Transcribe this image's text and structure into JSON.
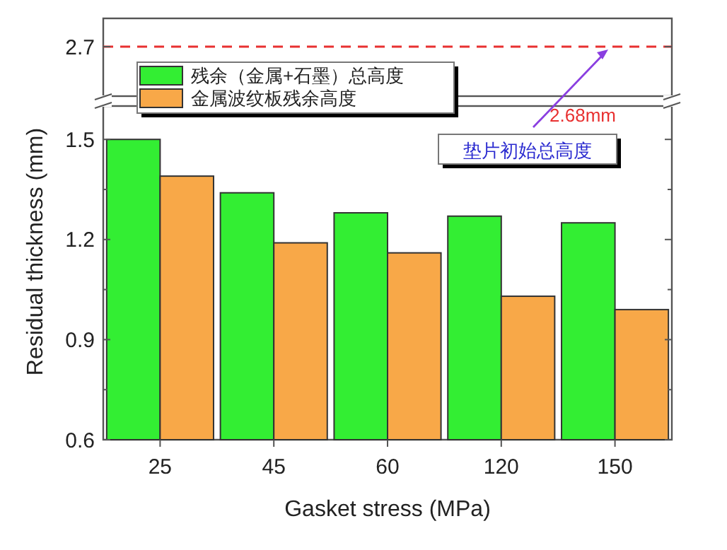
{
  "chart_data": {
    "type": "bar",
    "categories": [
      "25",
      "45",
      "60",
      "120",
      "150"
    ],
    "xlabel": "Gasket stress (MPa)",
    "ylabel": "Residual thickness (mm)",
    "ylim": [
      0.6,
      1.6
    ],
    "yticks": [
      0.6,
      {
        "value": 0.75,
        "label": null
      },
      0.9,
      {
        "value": 1.05,
        "label": null
      },
      1.2,
      {
        "value": 1.35,
        "label": null
      },
      1.5
    ],
    "legend": "top left",
    "series": [
      {
        "name": "残余（金属+石墨）总高度",
        "color": "#33ee33",
        "values": [
          1.5,
          1.34,
          1.28,
          1.27,
          1.25
        ]
      },
      {
        "name": "金属波纹板残余高度",
        "color": "#f8a848",
        "values": [
          1.39,
          1.19,
          1.16,
          1.03,
          0.99
        ]
      }
    ],
    "annotations": [
      "2.7",
      "2.68mm",
      "垫片初始总高度"
    ]
  }
}
